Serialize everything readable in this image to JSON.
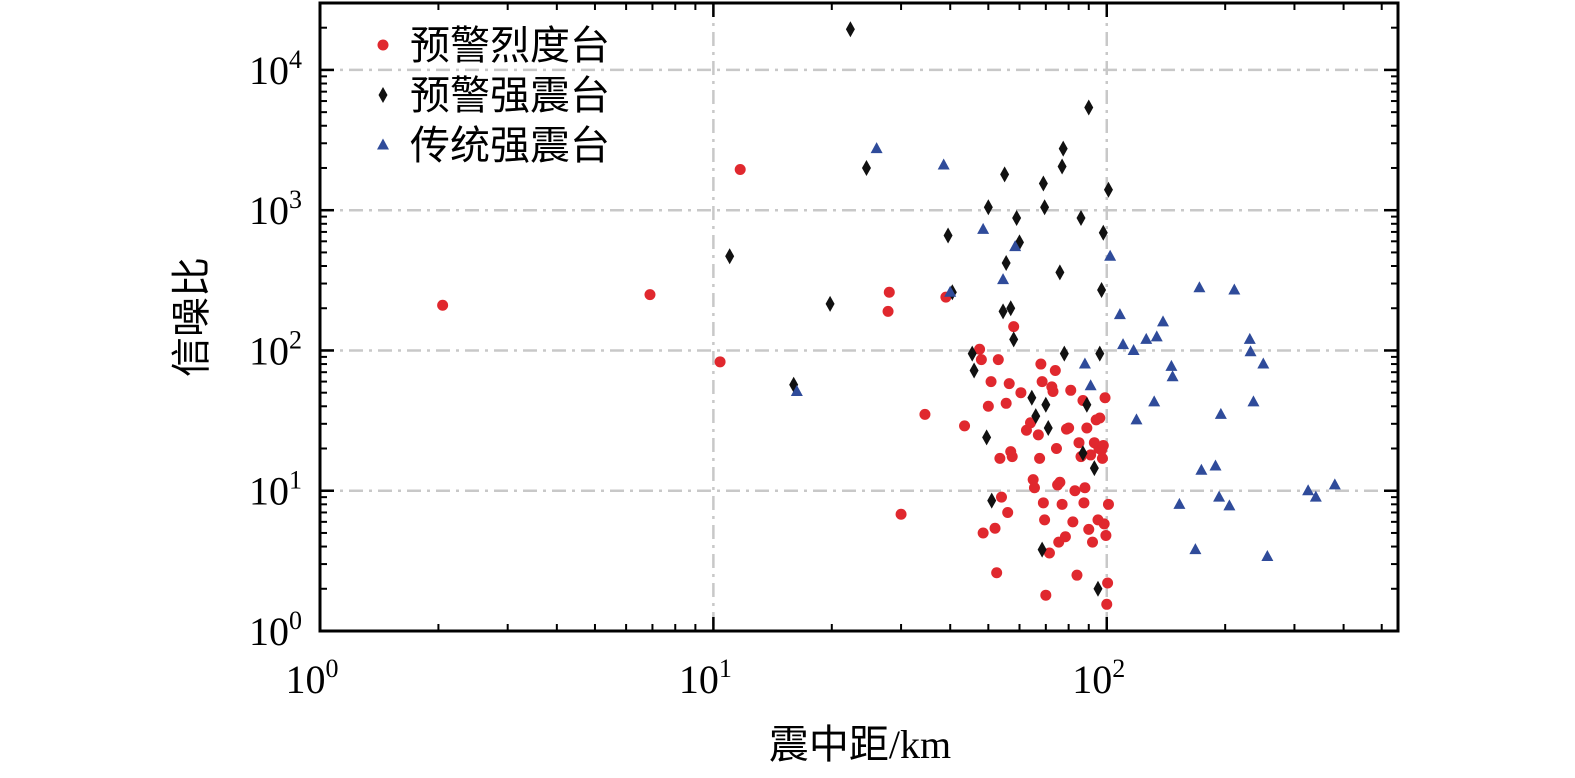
{
  "chart_data": {
    "type": "scatter",
    "title": "",
    "xlabel": "震中距/km",
    "ylabel": "信噪比",
    "xscale": "log",
    "yscale": "log",
    "xlim": [
      1,
      550
    ],
    "ylim": [
      1,
      30000
    ],
    "x_ticks": [
      {
        "value": 1,
        "base": "10",
        "exp": "0"
      },
      {
        "value": 10,
        "base": "10",
        "exp": "1"
      },
      {
        "value": 100,
        "base": "10",
        "exp": "2"
      }
    ],
    "y_ticks": [
      {
        "value": 1,
        "base": "10",
        "exp": "0"
      },
      {
        "value": 10,
        "base": "10",
        "exp": "1"
      },
      {
        "value": 100,
        "base": "10",
        "exp": "2"
      },
      {
        "value": 1000,
        "base": "10",
        "exp": "3"
      },
      {
        "value": 10000,
        "base": "10",
        "exp": "4"
      }
    ],
    "grid": true,
    "legend_position": "top-left",
    "series": [
      {
        "name": "预警烈度台",
        "marker": "circle",
        "color": "#e0282e",
        "points": [
          [
            2.05,
            210
          ],
          [
            6.9,
            250
          ],
          [
            10.4,
            83
          ],
          [
            11.7,
            1950
          ],
          [
            28,
            260
          ],
          [
            27.8,
            190
          ],
          [
            30,
            6.8
          ],
          [
            34.5,
            35
          ],
          [
            39,
            240
          ],
          [
            43.5,
            29
          ],
          [
            47.5,
            102
          ],
          [
            48,
            86
          ],
          [
            48.5,
            5
          ],
          [
            50,
            40
          ],
          [
            50.8,
            60
          ],
          [
            52,
            5.4
          ],
          [
            52.5,
            2.6
          ],
          [
            53,
            86
          ],
          [
            53.5,
            17
          ],
          [
            54,
            9
          ],
          [
            55.5,
            42
          ],
          [
            56,
            7
          ],
          [
            56.5,
            58
          ],
          [
            57,
            19
          ],
          [
            57.5,
            17.5
          ],
          [
            58,
            148
          ],
          [
            60.5,
            50
          ],
          [
            62.5,
            27
          ],
          [
            64,
            30.5
          ],
          [
            65,
            12
          ],
          [
            65.5,
            10.5
          ],
          [
            67,
            25
          ],
          [
            67.5,
            17
          ],
          [
            68,
            80
          ],
          [
            68.5,
            60
          ],
          [
            69,
            8.2
          ],
          [
            69.5,
            6.2
          ],
          [
            70,
            1.8
          ],
          [
            71.5,
            3.6
          ],
          [
            72.5,
            55
          ],
          [
            73,
            51
          ],
          [
            74,
            72
          ],
          [
            74.5,
            20
          ],
          [
            75,
            11
          ],
          [
            75.5,
            4.3
          ],
          [
            76,
            11.5
          ],
          [
            77,
            8
          ],
          [
            78.5,
            4.7
          ],
          [
            79,
            27.5
          ],
          [
            80,
            28
          ],
          [
            81,
            52
          ],
          [
            82,
            6
          ],
          [
            83,
            10
          ],
          [
            84,
            2.5
          ],
          [
            85,
            22
          ],
          [
            86,
            17.5
          ],
          [
            87,
            44
          ],
          [
            87.5,
            8.2
          ],
          [
            88,
            10.5
          ],
          [
            89,
            28
          ],
          [
            90,
            5.3
          ],
          [
            91,
            18
          ],
          [
            92,
            4.3
          ],
          [
            93,
            22
          ],
          [
            94,
            32
          ],
          [
            95,
            6.2
          ],
          [
            95.5,
            20
          ],
          [
            96,
            33
          ],
          [
            97,
            19.5
          ],
          [
            97.5,
            17
          ],
          [
            98,
            21
          ],
          [
            98.5,
            5.8
          ],
          [
            99,
            46
          ],
          [
            99.5,
            4.8
          ],
          [
            100,
            1.55
          ],
          [
            100.5,
            2.2
          ],
          [
            101,
            8
          ]
        ]
      },
      {
        "name": "预警强震台",
        "marker": "diamond",
        "color": "#111111",
        "points": [
          [
            11,
            470
          ],
          [
            16,
            57
          ],
          [
            19.8,
            215
          ],
          [
            22.3,
            19500
          ],
          [
            24.5,
            2000
          ],
          [
            39.5,
            660
          ],
          [
            40.5,
            260
          ],
          [
            45.5,
            95
          ],
          [
            46,
            72
          ],
          [
            49.5,
            24
          ],
          [
            50,
            1050
          ],
          [
            51,
            8.5
          ],
          [
            54.5,
            190
          ],
          [
            55,
            1800
          ],
          [
            55.5,
            420
          ],
          [
            57,
            200
          ],
          [
            58,
            120
          ],
          [
            59,
            880
          ],
          [
            60,
            590
          ],
          [
            64.5,
            46
          ],
          [
            66,
            34
          ],
          [
            68.5,
            3.8
          ],
          [
            69,
            1550
          ],
          [
            69.5,
            1050
          ],
          [
            70,
            41
          ],
          [
            71,
            28
          ],
          [
            76,
            360
          ],
          [
            77,
            2050
          ],
          [
            77.5,
            2750
          ],
          [
            78,
            95
          ],
          [
            86,
            880
          ],
          [
            87,
            18.5
          ],
          [
            89,
            41
          ],
          [
            90,
            5400
          ],
          [
            93,
            14.5
          ],
          [
            95,
            2
          ],
          [
            96,
            95
          ],
          [
            97,
            270
          ],
          [
            98,
            690
          ],
          [
            101,
            1400
          ]
        ]
      },
      {
        "name": "传统强震台",
        "marker": "triangle",
        "color": "#2f4b9a",
        "points": [
          [
            16.3,
            51
          ],
          [
            26,
            2750
          ],
          [
            38.5,
            2100
          ],
          [
            40,
            260
          ],
          [
            48.5,
            730
          ],
          [
            54.5,
            320
          ],
          [
            58.5,
            550
          ],
          [
            88,
            80
          ],
          [
            91,
            56
          ],
          [
            102,
            470
          ],
          [
            108,
            180
          ],
          [
            110,
            110
          ],
          [
            117,
            100
          ],
          [
            119,
            32
          ],
          [
            126,
            120
          ],
          [
            132,
            43
          ],
          [
            134,
            125
          ],
          [
            139,
            160
          ],
          [
            146,
            77
          ],
          [
            147,
            65
          ],
          [
            153,
            8
          ],
          [
            168,
            3.8
          ],
          [
            172,
            280
          ],
          [
            174,
            14
          ],
          [
            189,
            15
          ],
          [
            193,
            9
          ],
          [
            195,
            35
          ],
          [
            205,
            7.8
          ],
          [
            211,
            270
          ],
          [
            231,
            120
          ],
          [
            232,
            98
          ],
          [
            236,
            43
          ],
          [
            250,
            80
          ],
          [
            256,
            3.4
          ],
          [
            325,
            10
          ],
          [
            340,
            9
          ],
          [
            380,
            11
          ]
        ]
      }
    ]
  }
}
